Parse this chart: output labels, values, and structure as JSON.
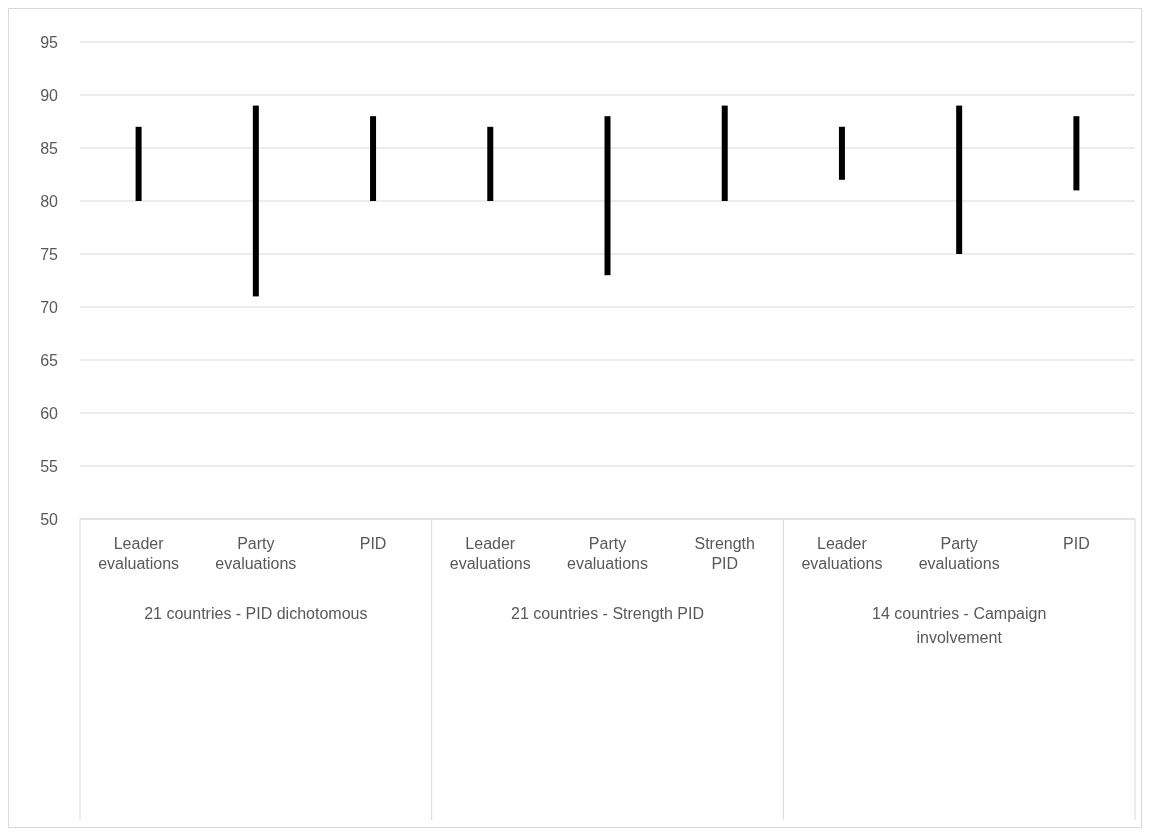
{
  "chart_data": {
    "type": "bar",
    "categories": [
      "Leader evaluations",
      "Party evaluations",
      "PID",
      "Leader evaluations",
      "Party evaluations",
      "Strength PID",
      "Leader evaluations",
      "Party evaluations",
      "PID"
    ],
    "base": [
      80,
      71,
      80,
      80,
      73,
      80,
      82,
      75,
      81
    ],
    "values": [
      7,
      18,
      8,
      7,
      15,
      9,
      5,
      14,
      7
    ],
    "color": "#000000",
    "ylim": [
      50,
      95
    ],
    "yticks": [
      50,
      55,
      60,
      65,
      70,
      75,
      80,
      85,
      90,
      95
    ],
    "grid": "y",
    "annotations": [
      "21 countries - PID dichotomous",
      "21 countries - Strength PID",
      "14 countries - Campaign involvement"
    ]
  }
}
